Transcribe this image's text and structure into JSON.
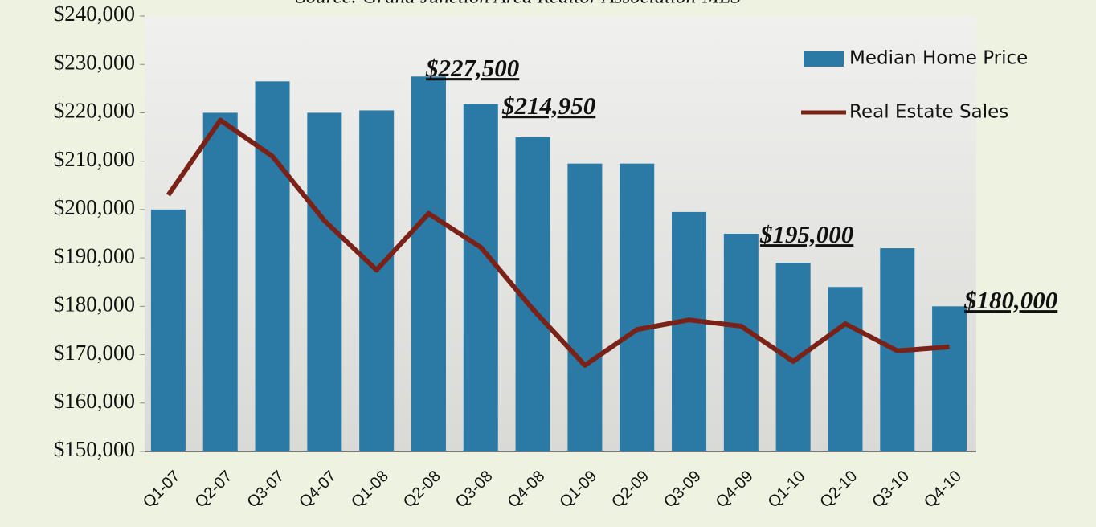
{
  "chart_data": {
    "type": "bar_line",
    "subtitle": "Source: Grand Junction Area Realtor Association-MLS",
    "categories": [
      "Q1-07",
      "Q2-07",
      "Q3-07",
      "Q4-07",
      "Q1-08",
      "Q2-08",
      "Q3-08",
      "Q4-08",
      "Q1-09",
      "Q2-09",
      "Q3-09",
      "Q4-09",
      "Q1-10",
      "Q2-10",
      "Q3-10",
      "Q4-10"
    ],
    "series": [
      {
        "name": "Median Home Price",
        "type": "bar",
        "color": "#2a7aa5",
        "values": [
          200000,
          220000,
          226500,
          220000,
          220500,
          227500,
          221800,
          214950,
          209500,
          209500,
          199500,
          195000,
          189000,
          184000,
          192000,
          180000
        ]
      },
      {
        "name": "Real Estate Sales",
        "type": "line",
        "color": "#7b2218",
        "values": [
          203000,
          218500,
          211000,
          197700,
          187500,
          199200,
          192200,
          179400,
          167800,
          175200,
          177200,
          175900,
          168600,
          176400,
          170800,
          171600
        ]
      }
    ],
    "annotations": [
      "$227,500",
      "$214,950",
      "$195,000",
      "$180,000"
    ],
    "ylim": [
      150000,
      240000
    ],
    "yticks": [
      {
        "value": 150000,
        "label": "$150,000"
      },
      {
        "value": 160000,
        "label": "$160,000"
      },
      {
        "value": 170000,
        "label": "$170,000"
      },
      {
        "value": 180000,
        "label": "$180,000"
      },
      {
        "value": 190000,
        "label": "$190,000"
      },
      {
        "value": 200000,
        "label": "$200,000"
      },
      {
        "value": 210000,
        "label": "$210,000"
      },
      {
        "value": 220000,
        "label": "$220,000"
      },
      {
        "value": 230000,
        "label": "$230,000"
      },
      {
        "value": 240000,
        "label": "$240,000"
      }
    ],
    "legend": "top-right",
    "grid": false
  }
}
